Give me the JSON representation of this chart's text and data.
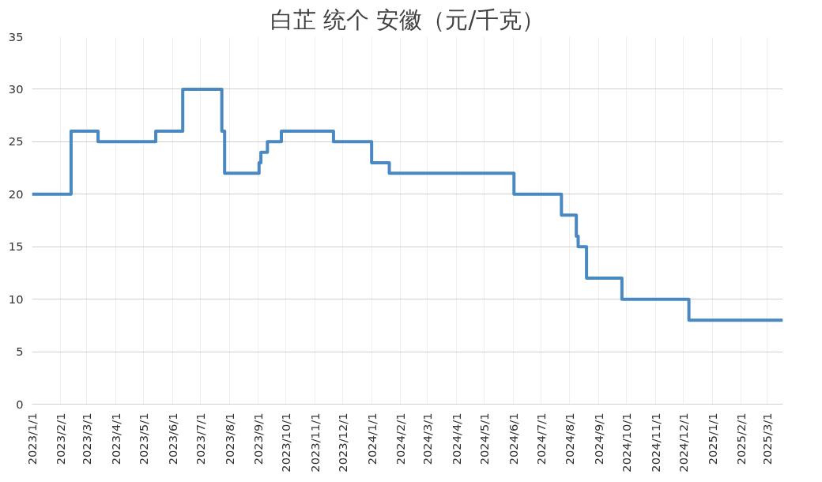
{
  "chart_data": {
    "type": "step",
    "title": "白芷 统个 安徽（元/千克）",
    "x": [
      "2023-01-01",
      "2023-02-12",
      "2023-03-13",
      "2023-05-14",
      "2023-06-12",
      "2023-07-24",
      "2023-07-27",
      "2023-09-02",
      "2023-09-04",
      "2023-09-11",
      "2023-09-26",
      "2023-11-21",
      "2024-01-01",
      "2024-01-20",
      "2024-06-02",
      "2024-07-23",
      "2024-08-08",
      "2024-08-10",
      "2024-08-19",
      "2024-09-26",
      "2024-12-07",
      "2025-03-18"
    ],
    "series": [
      {
        "color": "#4a88c2",
        "values": [
          20,
          26,
          25,
          26,
          30,
          26,
          22,
          23,
          24,
          25,
          26,
          25,
          23,
          22,
          20,
          18,
          16,
          15,
          12,
          10,
          8,
          8
        ]
      }
    ],
    "xlim": [
      "2023-01-01",
      "2025-03-18"
    ],
    "xticks": [
      {
        "value": "2023-01-01",
        "label": "2023/1/1"
      },
      {
        "value": "2023-02-01",
        "label": "2023/2/1"
      },
      {
        "value": "2023-03-01",
        "label": "2023/3/1"
      },
      {
        "value": "2023-04-01",
        "label": "2023/4/1"
      },
      {
        "value": "2023-05-01",
        "label": "2023/5/1"
      },
      {
        "value": "2023-06-01",
        "label": "2023/6/1"
      },
      {
        "value": "2023-07-01",
        "label": "2023/7/1"
      },
      {
        "value": "2023-08-01",
        "label": "2023/8/1"
      },
      {
        "value": "2023-09-01",
        "label": "2023/9/1"
      },
      {
        "value": "2023-10-01",
        "label": "2023/10/1"
      },
      {
        "value": "2023-11-01",
        "label": "2023/11/1"
      },
      {
        "value": "2023-12-01",
        "label": "2023/12/1"
      },
      {
        "value": "2024-01-01",
        "label": "2024/1/1"
      },
      {
        "value": "2024-02-01",
        "label": "2024/2/1"
      },
      {
        "value": "2024-03-01",
        "label": "2024/3/1"
      },
      {
        "value": "2024-04-01",
        "label": "2024/4/1"
      },
      {
        "value": "2024-05-01",
        "label": "2024/5/1"
      },
      {
        "value": "2024-06-01",
        "label": "2024/6/1"
      },
      {
        "value": "2024-07-01",
        "label": "2024/7/1"
      },
      {
        "value": "2024-08-01",
        "label": "2024/8/1"
      },
      {
        "value": "2024-09-01",
        "label": "2024/9/1"
      },
      {
        "value": "2024-10-01",
        "label": "2024/10/1"
      },
      {
        "value": "2024-11-01",
        "label": "2024/11/1"
      },
      {
        "value": "2024-12-01",
        "label": "2024/12/1"
      },
      {
        "value": "2025-01-01",
        "label": "2025/1/1"
      },
      {
        "value": "2025-02-01",
        "label": "2025/2/1"
      },
      {
        "value": "2025-03-01",
        "label": "2025/3/1"
      }
    ],
    "ylim": [
      0,
      35
    ],
    "yticks": [
      0,
      5,
      10,
      15,
      20,
      25,
      30,
      35
    ],
    "grid": true,
    "line_style": "solid"
  }
}
